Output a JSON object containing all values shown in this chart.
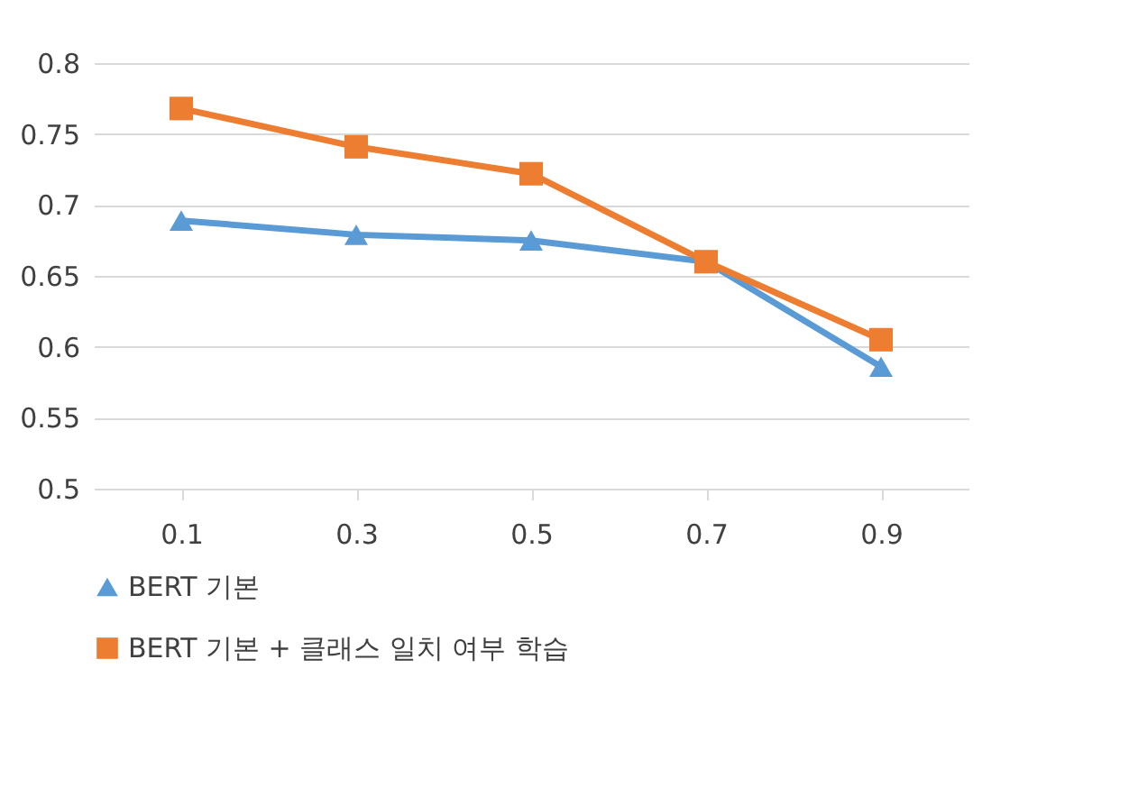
{
  "chart_data": {
    "type": "line",
    "categories": [
      "0.1",
      "0.3",
      "0.5",
      "0.7",
      "0.9"
    ],
    "series": [
      {
        "name": "BERT 기본",
        "color": "#5b9bd5",
        "marker": "triangle",
        "values": [
          0.689,
          0.679,
          0.675,
          0.66,
          0.586
        ]
      },
      {
        "name": "BERT 기본 + 클래스 일치 여부 학습",
        "color": "#ed7d31",
        "marker": "square",
        "values": [
          0.768,
          0.741,
          0.722,
          0.66,
          0.605
        ]
      }
    ],
    "ylim": [
      0.5,
      0.8
    ],
    "yticks": [
      0.5,
      0.55,
      0.6,
      0.65,
      0.7,
      0.75,
      0.8
    ],
    "grid": "y",
    "legend": "bottom"
  }
}
